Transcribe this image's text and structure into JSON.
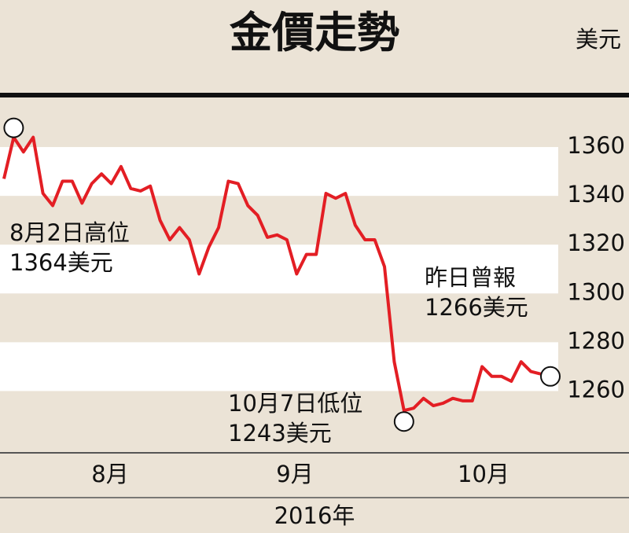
{
  "chart_data": {
    "type": "line",
    "title": "金價走勢",
    "unit": "美元",
    "x_labels": [
      "8月",
      "9月",
      "10月"
    ],
    "x_axis_label": "2016年",
    "series": [
      {
        "name": null,
        "color": "#e31e24",
        "values": [
          1347,
          1364,
          1358,
          1364,
          1341,
          1336,
          1346,
          1346,
          1337,
          1345,
          1349,
          1345,
          1352,
          1343,
          1342,
          1344,
          1330,
          1322,
          1327,
          1322,
          1308,
          1319,
          1327,
          1346,
          1345,
          1336,
          1332,
          1323,
          1324,
          1322,
          1308,
          1316,
          1316,
          1341,
          1339,
          1341,
          1328,
          1322,
          1322,
          1311,
          1272,
          1252,
          1253,
          1257,
          1254,
          1255,
          1257,
          1256,
          1256,
          1270,
          1266,
          1266,
          1264,
          1272,
          1268,
          1267,
          1266
        ]
      }
    ],
    "ylim": [
      1235,
      1380
    ],
    "yticks": [
      1260,
      1280,
      1300,
      1320,
      1340,
      1360
    ],
    "annotations": [
      [
        "8月2日高位",
        "1364美元"
      ],
      [
        "10月7日低位",
        "1243美元"
      ],
      [
        "昨日曾報",
        "1266美元"
      ]
    ]
  }
}
